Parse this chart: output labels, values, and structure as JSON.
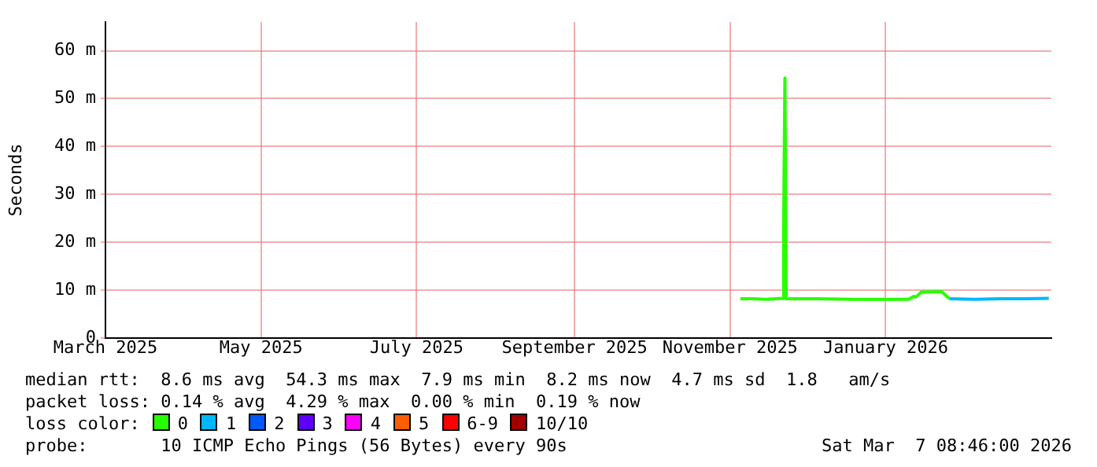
{
  "chart_data": {
    "type": "line",
    "ylabel": "Seconds",
    "legend_title": "loss color:",
    "legend": "bottom",
    "grid": true,
    "marker": "none",
    "line_style": "solid",
    "xlim": [
      "2025-03-01",
      "2026-03-07"
    ],
    "xticks": [
      {
        "value": "2025-03-01",
        "label": "March 2025"
      },
      {
        "value": "2025-05-01",
        "label": "May 2025"
      },
      {
        "value": "2025-07-01",
        "label": "July 2025"
      },
      {
        "value": "2025-09-01",
        "label": "September 2025"
      },
      {
        "value": "2025-11-01",
        "label": "November 2025"
      },
      {
        "value": "2026-01-01",
        "label": "January 2026"
      }
    ],
    "ylim": [
      0,
      66
    ],
    "yticks": [
      0,
      {
        "value": 10,
        "label": "10 m"
      },
      {
        "value": 20,
        "label": "20 m"
      },
      {
        "value": 30,
        "label": "30 m"
      },
      {
        "value": 40,
        "label": "40 m"
      },
      {
        "value": 50,
        "label": "50 m"
      },
      {
        "value": 60,
        "label": "60 m"
      }
    ],
    "series": [
      {
        "name": "0",
        "color": "#26ff00",
        "x": [
          "2025-11-05",
          "2025-11-10",
          "2025-11-15",
          "2025-11-21T12:00",
          "2025-11-22",
          "2025-11-22T12:00",
          "2025-11-23",
          "2025-12-05",
          "2025-12-20",
          "2026-01-10",
          "2026-01-12",
          "2026-01-13",
          "2026-01-15",
          "2026-01-23",
          "2026-01-26"
        ],
        "values": [
          8.2,
          8.2,
          8.1,
          8.3,
          23.6,
          54.3,
          8.2,
          8.2,
          8.1,
          8.1,
          8.7,
          8.6,
          9.6,
          9.7,
          8.2
        ]
      },
      {
        "name": "1",
        "color": "#00b7ff",
        "x": [
          "2026-01-26",
          "2026-02-05",
          "2026-02-15",
          "2026-02-25",
          "2026-03-06"
        ],
        "values": [
          8.2,
          8.1,
          8.2,
          8.2,
          8.3
        ]
      },
      {
        "name": "2",
        "color": "#0059ff"
      },
      {
        "name": "3",
        "color": "#5e00ff"
      },
      {
        "name": "4",
        "color": "#ff00ff"
      },
      {
        "name": "5",
        "color": "#ff5e00"
      },
      {
        "name": "6-9",
        "color": "#ff0000"
      },
      {
        "name": "10/10",
        "color": "#a10000"
      }
    ],
    "annotations": [
      "median rtt:  8.6 ms avg  54.3 ms max  7.9 ms min  8.2 ms now  4.7 ms sd  1.8   am/s",
      "packet loss: 0.14 % avg  4.29 % max  0.00 % min  0.19 % now",
      "probe:       10 ICMP Echo Pings (56 Bytes) every 90s",
      "Sat Mar  7 08:46:00 2026"
    ]
  }
}
